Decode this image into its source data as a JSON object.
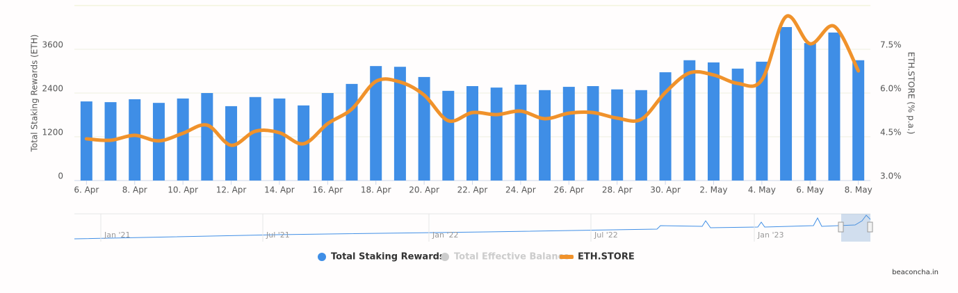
{
  "chart_data": {
    "type": "bar-line",
    "categories": [
      "6. Apr",
      null,
      "8. Apr",
      null,
      "10. Apr",
      null,
      "12. Apr",
      null,
      "14. Apr",
      null,
      "16. Apr",
      null,
      "18. Apr",
      null,
      "20. Apr",
      null,
      "22. Apr",
      null,
      "24. Apr",
      null,
      "26. Apr",
      null,
      "28. Apr",
      null,
      "30. Apr",
      null,
      "2. May",
      null,
      "4. May",
      null,
      "6. May",
      null,
      "8. May"
    ],
    "series": [
      {
        "name": "Total Staking Rewards",
        "type": "bar",
        "color": "#3f8ee6",
        "values": [
          2170,
          2150,
          2230,
          2130,
          2250,
          2400,
          2040,
          2290,
          2250,
          2060,
          2400,
          2650,
          3140,
          3120,
          2840,
          2460,
          2590,
          2550,
          2630,
          2480,
          2570,
          2590,
          2500,
          2480,
          2970,
          3300,
          3240,
          3070,
          3260,
          4210,
          3770,
          4060,
          3300
        ]
      },
      {
        "name": "Total Effective Balance",
        "type": "bar",
        "color": "#cccccc",
        "visible": false
      },
      {
        "name": "ETH.STORE",
        "type": "line",
        "axis": "y2",
        "color": "#f0922b",
        "values": [
          4.43,
          4.38,
          4.55,
          4.36,
          4.62,
          4.9,
          4.21,
          4.69,
          4.64,
          4.26,
          4.95,
          5.45,
          6.4,
          6.38,
          5.93,
          5.05,
          5.33,
          5.26,
          5.38,
          5.12,
          5.31,
          5.33,
          5.14,
          5.1,
          6.02,
          6.69,
          6.62,
          6.33,
          6.45,
          8.62,
          7.69,
          8.29,
          6.76
        ]
      }
    ],
    "ylabel": "Total Staking Rewards (ETH)",
    "y2label": "ETH.STORE (% p.a.)",
    "ylim": [
      0,
      4800
    ],
    "yticks": [
      0,
      1200,
      2400,
      3600
    ],
    "y2lim": [
      3.0,
      9.0
    ],
    "y2ticks": [
      {
        "value": 3.0,
        "label": "3.0%"
      },
      {
        "value": 4.5,
        "label": "4.5%"
      },
      {
        "value": 6.0,
        "label": "6.0%"
      },
      {
        "value": 7.5,
        "label": "7.5%"
      }
    ],
    "grid": true,
    "legend": "bottom",
    "navigator_labels": [
      "Jan '21",
      "Jul '21",
      "Jan '22",
      "Jul '22",
      "Jan '23"
    ],
    "credit": "beaconcha.in"
  }
}
